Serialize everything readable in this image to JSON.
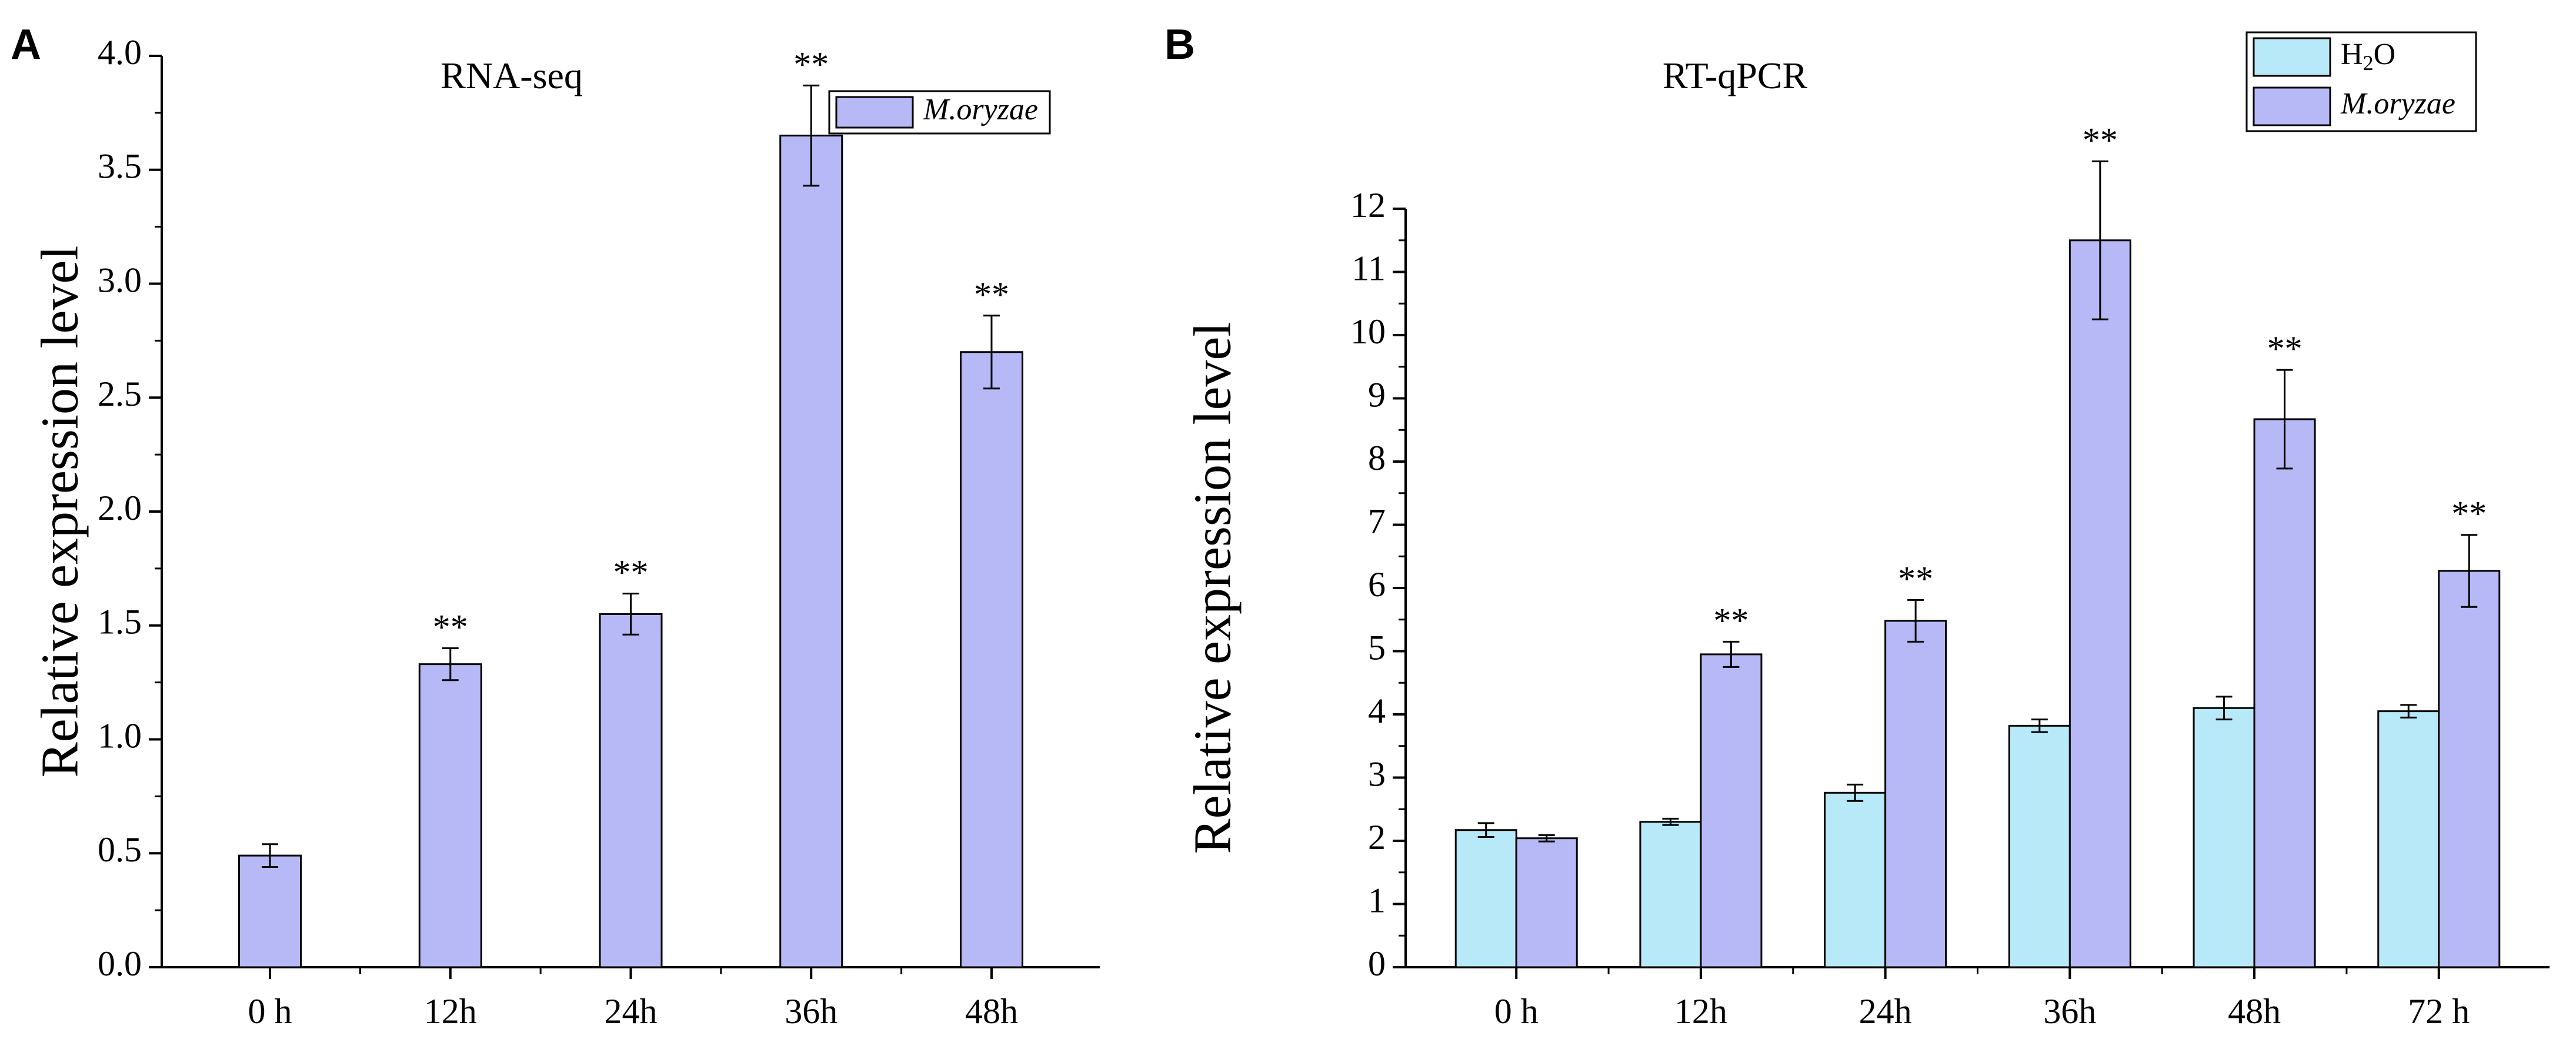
{
  "figure": {
    "panel_labels": [
      "A",
      "B"
    ]
  },
  "colors": {
    "water": "#b7e9f8",
    "moryzae": "#b7b9f7",
    "axis": "#000000"
  },
  "chart_data": [
    {
      "type": "bar",
      "panel": "A",
      "title": "RNA-seq",
      "xlabel": "",
      "ylabel": "Relative expression level",
      "ylim": [
        0,
        4.0
      ],
      "yticks": [
        "0.0",
        "0.5",
        "1.0",
        "1.5",
        "2.0",
        "2.5",
        "3.0",
        "3.5",
        "4.0"
      ],
      "categories": [
        "0 h",
        "12h",
        "24h",
        "36h",
        "48h"
      ],
      "legend": {
        "position": "top-right",
        "entries": [
          "M.oryzae"
        ]
      },
      "series": [
        {
          "name": "M.oryzae",
          "color": "#b7b9f7",
          "values": [
            0.49,
            1.33,
            1.55,
            3.65,
            2.7
          ],
          "errors": [
            0.05,
            0.07,
            0.09,
            0.22,
            0.16
          ],
          "significance": [
            "",
            "**",
            "**",
            "**",
            "**"
          ]
        }
      ]
    },
    {
      "type": "bar",
      "panel": "B",
      "title": "RT-qPCR",
      "xlabel": "",
      "ylabel": "Relative expression level",
      "ylim": [
        0,
        12
      ],
      "yticks": [
        "0",
        "1",
        "2",
        "3",
        "4",
        "5",
        "6",
        "7",
        "8",
        "9",
        "10",
        "11",
        "12"
      ],
      "categories": [
        "0 h",
        "12h",
        "24h",
        "36h",
        "48h",
        "72 h"
      ],
      "legend": {
        "position": "top-right",
        "entries": [
          "H2O",
          "M.oryzae"
        ]
      },
      "series": [
        {
          "name": "H2O",
          "color": "#b7e9f8",
          "values": [
            2.17,
            2.3,
            2.76,
            3.82,
            4.1,
            4.05
          ],
          "errors": [
            0.11,
            0.05,
            0.13,
            0.1,
            0.18,
            0.1
          ],
          "significance": [
            "",
            "",
            "",
            "",
            "",
            ""
          ]
        },
        {
          "name": "M.oryzae",
          "color": "#b7b9f7",
          "values": [
            2.04,
            4.95,
            5.48,
            11.5,
            8.67,
            6.27
          ],
          "errors": [
            0.05,
            0.2,
            0.33,
            1.25,
            0.78,
            0.57
          ],
          "significance": [
            "",
            "**",
            "**",
            "**",
            "**",
            "**"
          ]
        }
      ]
    }
  ]
}
